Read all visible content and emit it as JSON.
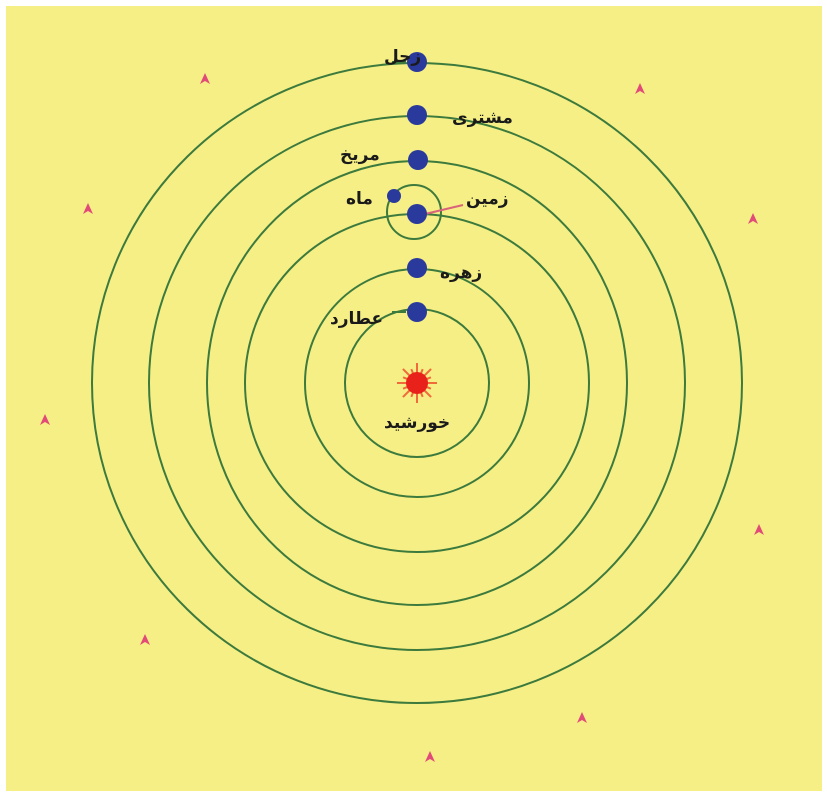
{
  "colors": {
    "background": "#f6ef86",
    "orbit": "#3d7a3d",
    "planet": "#2a3a9c",
    "sun": "#e8221b",
    "sun_rays": "#f06a3a",
    "stars": "#e24a78",
    "moon_pointer": "#d9637a"
  },
  "labels": {
    "saturn": "زحل",
    "jupiter": "مشتری",
    "mars": "مریخ",
    "moon": "ماه",
    "earth": "زمین",
    "venus": "زهره",
    "mercury": "عطارد",
    "sun": "خورشید"
  },
  "icons": {
    "sun": "sun-icon",
    "planet": "planet-dot-icon",
    "star": "star-icon"
  }
}
